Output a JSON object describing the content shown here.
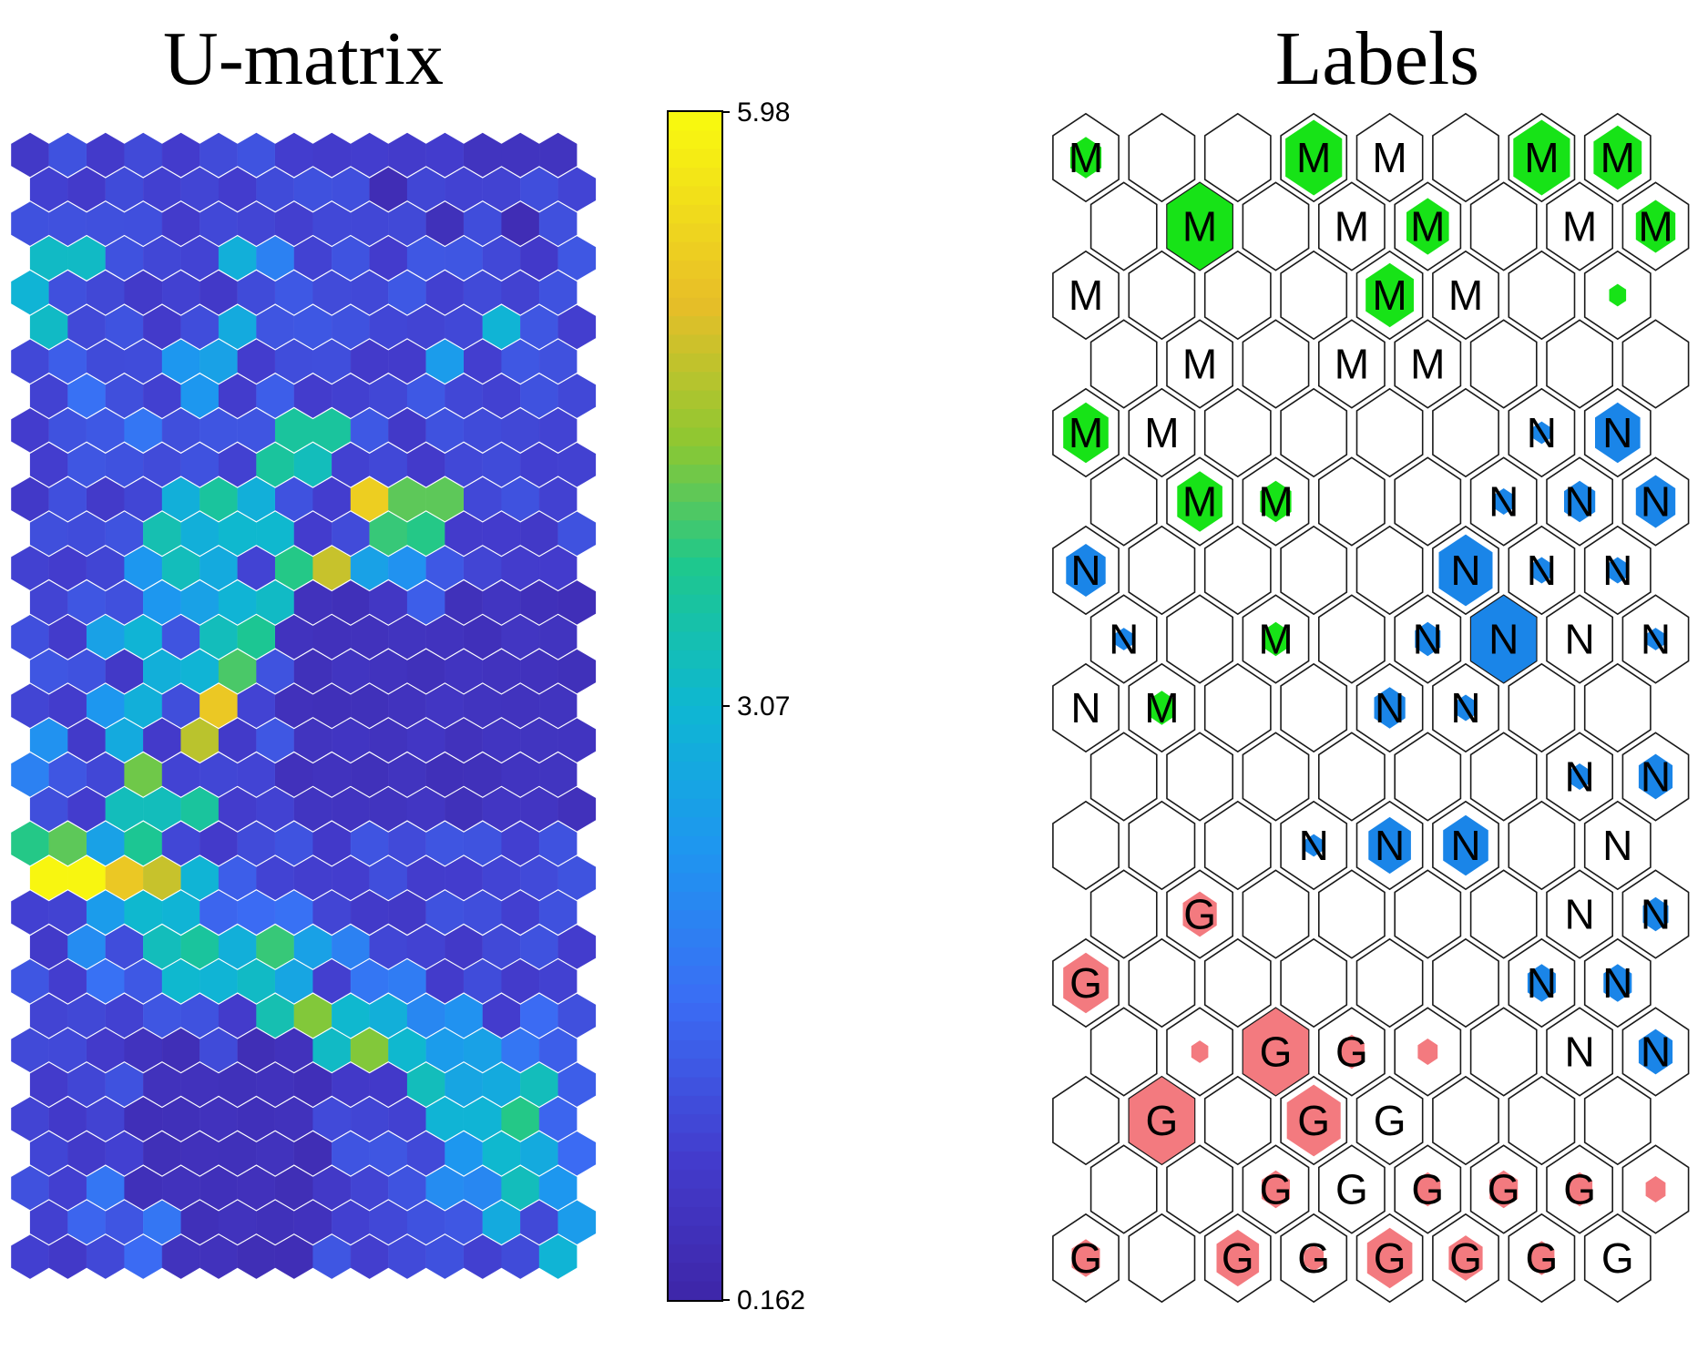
{
  "chart_data": [
    {
      "type": "heatmap",
      "title": "U-matrix",
      "grid": {
        "rows": 33,
        "cols": 15
      },
      "colorbar": {
        "min": 0.162,
        "max": 5.98,
        "ticks": [
          "5.98",
          "3.07",
          "0.162"
        ]
      },
      "upper_boundary": [
        2,
        1,
        1,
        1,
        1,
        1,
        1,
        1,
        1,
        1,
        1,
        1,
        1,
        1,
        2
      ],
      "seeds": [
        [
          3,
          0,
          3.2
        ],
        [
          3,
          1,
          3.2
        ],
        [
          4,
          0,
          3.0
        ],
        [
          5,
          0,
          3.2
        ],
        [
          1,
          2,
          1.1
        ],
        [
          3,
          2,
          1.2
        ],
        [
          5,
          5,
          2.8
        ],
        [
          11,
          6,
          3.1
        ],
        [
          12,
          7,
          3.8
        ],
        [
          12,
          8,
          4.8
        ],
        [
          11,
          9,
          3.9
        ],
        [
          11,
          10,
          3.8
        ],
        [
          10,
          9,
          5.3
        ],
        [
          10,
          10,
          4.1
        ],
        [
          10,
          11,
          4.1
        ],
        [
          12,
          9,
          2.6
        ],
        [
          12,
          10,
          2.3
        ],
        [
          13,
          10,
          1.4
        ],
        [
          12,
          11,
          1.3
        ],
        [
          6,
          11,
          2.5
        ],
        [
          4,
          10,
          1.3
        ],
        [
          5,
          12,
          3.0
        ],
        [
          12,
          4,
          3.3
        ],
        [
          11,
          5,
          3.1
        ],
        [
          10,
          6,
          2.9
        ],
        [
          11,
          4,
          2.9
        ],
        [
          11,
          3,
          3.4
        ],
        [
          10,
          4,
          2.9
        ],
        [
          10,
          5,
          3.6
        ],
        [
          9,
          6,
          3.6
        ],
        [
          9,
          7,
          3.3
        ],
        [
          8,
          8,
          3.6
        ],
        [
          8,
          7,
          3.6
        ],
        [
          12,
          5,
          2.8
        ],
        [
          13,
          5,
          3.0
        ],
        [
          13,
          6,
          3.2
        ],
        [
          14,
          5,
          3.3
        ],
        [
          14,
          6,
          3.7
        ],
        [
          15,
          5,
          4.0
        ],
        [
          16,
          5,
          5.2
        ],
        [
          15,
          4,
          3.0
        ],
        [
          17,
          4,
          4.7
        ],
        [
          18,
          3,
          4.2
        ],
        [
          19,
          4,
          3.6
        ],
        [
          20,
          3,
          3.7
        ],
        [
          21,
          3,
          4.8
        ],
        [
          21,
          2,
          3.0
        ],
        [
          19,
          2,
          3.3
        ],
        [
          19,
          3,
          3.3
        ],
        [
          20,
          1,
          4.1
        ],
        [
          20,
          0,
          3.8
        ],
        [
          21,
          0,
          5.9
        ],
        [
          21,
          1,
          5.9
        ],
        [
          21,
          2,
          5.2
        ],
        [
          22,
          2,
          2.5
        ],
        [
          23,
          3,
          3.3
        ],
        [
          22,
          3,
          3.1
        ],
        [
          22,
          4,
          3.0
        ],
        [
          21,
          4,
          3.0
        ],
        [
          23,
          4,
          3.6
        ],
        [
          24,
          4,
          3.1
        ],
        [
          24,
          5,
          3.0
        ],
        [
          24,
          6,
          3.2
        ],
        [
          23,
          6,
          3.9
        ],
        [
          23,
          5,
          2.9
        ],
        [
          25,
          6,
          3.4
        ],
        [
          25,
          7,
          4.3
        ],
        [
          25,
          8,
          3.1
        ],
        [
          26,
          8,
          3.2
        ],
        [
          26,
          9,
          4.3
        ],
        [
          26,
          10,
          3.1
        ],
        [
          27,
          10,
          3.3
        ],
        [
          28,
          11,
          3.0
        ],
        [
          28,
          12,
          3.0
        ],
        [
          28,
          13,
          3.8
        ],
        [
          27,
          12,
          2.8
        ],
        [
          29,
          12,
          3.1
        ],
        [
          30,
          11,
          2.2
        ],
        [
          30,
          13,
          3.3
        ],
        [
          31,
          12,
          2.8
        ],
        [
          32,
          14,
          3.0
        ],
        [
          31,
          14,
          2.5
        ],
        [
          30,
          14,
          2.4
        ],
        [
          29,
          13,
          2.8
        ],
        [
          27,
          13,
          3.3
        ],
        [
          26,
          12,
          2.6
        ],
        [
          25,
          11,
          2.3
        ],
        [
          21,
          5,
          1.4
        ],
        [
          22,
          5,
          1.5
        ],
        [
          23,
          7,
          2.6
        ],
        [
          24,
          7,
          2.7
        ],
        [
          25,
          9,
          2.9
        ],
        [
          26,
          11,
          2.5
        ],
        [
          27,
          11,
          2.7
        ],
        [
          29,
          11,
          2.4
        ],
        [
          17,
          2,
          2.8
        ],
        [
          16,
          2,
          2.4
        ],
        [
          16,
          3,
          2.9
        ],
        [
          15,
          3,
          2.9
        ],
        [
          14,
          3,
          3.0
        ],
        [
          14,
          2,
          2.6
        ],
        [
          13,
          3,
          2.4
        ],
        [
          13,
          4,
          2.6
        ],
        [
          12,
          3,
          2.4
        ],
        [
          8,
          2,
          1.3
        ],
        [
          7,
          4,
          2.4
        ],
        [
          6,
          5,
          2.6
        ],
        [
          7,
          6,
          1.4
        ],
        [
          8,
          9,
          1.3
        ],
        [
          7,
          10,
          1.3
        ],
        [
          3,
          5,
          2.9
        ],
        [
          3,
          6,
          2.0
        ],
        [
          6,
          4,
          2.4
        ],
        [
          2,
          13,
          0.4
        ],
        [
          1,
          9,
          0.4
        ],
        [
          2,
          11,
          0.5
        ],
        [
          1,
          6,
          1.1
        ],
        [
          23,
          1,
          2.2
        ],
        [
          24,
          2,
          1.7
        ],
        [
          31,
          1,
          1.5
        ],
        [
          30,
          2,
          1.8
        ],
        [
          31,
          3,
          1.8
        ],
        [
          32,
          3,
          1.6
        ],
        [
          17,
          0,
          2.3
        ],
        [
          18,
          0,
          2.0
        ],
        [
          20,
          2,
          2.6
        ],
        [
          6,
          1,
          1.4
        ],
        [
          7,
          1,
          1.7
        ],
        [
          8,
          3,
          1.8
        ],
        [
          9,
          2,
          1.2
        ],
        [
          9,
          4,
          1.2
        ],
        [
          2,
          7,
          0.9
        ],
        [
          4,
          6,
          1.1
        ],
        [
          9,
          12,
          1.1
        ],
        [
          22,
          6,
          1.6
        ],
        [
          22,
          7,
          1.7
        ],
        [
          23,
          8,
          2.0
        ],
        [
          24,
          9,
          1.8
        ],
        [
          24,
          10,
          1.9
        ],
        [
          25,
          10,
          2.1
        ],
        [
          28,
          14,
          1.5
        ],
        [
          29,
          14,
          1.6
        ],
        [
          27,
          14,
          1.4
        ],
        [
          30,
          12,
          2.1
        ],
        [
          26,
          13,
          1.8
        ],
        [
          25,
          13,
          1.6
        ],
        [
          26,
          14,
          1.4
        ],
        [
          10,
          13,
          1.2
        ],
        [
          8,
          12,
          1.1
        ],
        [
          12,
          12,
          1.0
        ],
        [
          24,
          3,
          1.3
        ],
        [
          25,
          4,
          1.2
        ],
        [
          26,
          5,
          1.1
        ]
      ]
    },
    {
      "type": "table",
      "title": "Labels",
      "grid": {
        "rows": 17,
        "cols": 8
      },
      "class_colors": {
        "M": "#17e317",
        "N": "#1a85e8",
        "G": "#f37a7f"
      },
      "rows": [
        [
          [
            "M",
            0.55
          ],
          [
            "",
            0
          ],
          [
            "",
            0
          ],
          [
            "M",
            1
          ],
          [
            "M",
            0
          ],
          [
            "",
            0
          ],
          [
            "M",
            1
          ],
          [
            "M",
            0.85
          ]
        ],
        [
          [
            "",
            0
          ],
          [
            "M",
            1.15
          ],
          [
            "",
            0
          ],
          [
            "M",
            0
          ],
          [
            "M",
            0.75
          ],
          [
            "",
            0
          ],
          [
            "M",
            0
          ],
          [
            "M",
            0.7
          ]
        ],
        [
          [
            "M",
            0
          ],
          [
            "",
            0
          ],
          [
            "",
            0
          ],
          [
            "",
            0
          ],
          [
            "M",
            0.85
          ],
          [
            "M",
            0
          ],
          [
            "",
            0
          ],
          [
            "",
            0.3
          ]
        ],
        [
          [
            "",
            0
          ],
          [
            "M",
            0
          ],
          [
            "",
            0
          ],
          [
            "M",
            0
          ],
          [
            "M",
            0
          ],
          [
            "",
            0
          ],
          [
            "",
            0
          ],
          [
            "",
            0
          ]
        ],
        [
          [
            "M",
            0.8
          ],
          [
            "M",
            0
          ],
          [
            "",
            0
          ],
          [
            "",
            0
          ],
          [
            "",
            0
          ],
          [
            "",
            0
          ],
          [
            "N",
            0.3
          ],
          [
            "N",
            0.8
          ]
        ],
        [
          [
            "",
            0
          ],
          [
            "M",
            0.8
          ],
          [
            "M",
            0.55
          ],
          [
            "",
            0
          ],
          [
            "",
            0
          ],
          [
            "N",
            0.35
          ],
          [
            "N",
            0.55
          ],
          [
            "N",
            0.7
          ]
        ],
        [
          [
            "N",
            0.7
          ],
          [
            "",
            0
          ],
          [
            "",
            0
          ],
          [
            "",
            0
          ],
          [
            "",
            0
          ],
          [
            "N",
            0.95
          ],
          [
            "N",
            0.35
          ],
          [
            "N",
            0.35
          ]
        ],
        [
          [
            "N",
            0.3
          ],
          [
            "",
            0
          ],
          [
            "M",
            0.45
          ],
          [
            "",
            0
          ],
          [
            "N",
            0.45
          ],
          [
            "N",
            1.15
          ],
          [
            "N",
            0
          ],
          [
            "N",
            0.3
          ]
        ],
        [
          [
            "N",
            0
          ],
          [
            "M",
            0.45
          ],
          [
            "",
            0
          ],
          [
            "",
            0
          ],
          [
            "N",
            0.55
          ],
          [
            "N",
            0.35
          ],
          [
            "",
            0
          ],
          [
            "",
            0
          ]
        ],
        [
          [
            "",
            0
          ],
          [
            "",
            0
          ],
          [
            "",
            0
          ],
          [
            "",
            0
          ],
          [
            "",
            0
          ],
          [
            "",
            0
          ],
          [
            "N",
            0.35
          ],
          [
            "N",
            0.6
          ]
        ],
        [
          [
            "",
            0
          ],
          [
            "",
            0
          ],
          [
            "",
            0
          ],
          [
            "N",
            0.3
          ],
          [
            "N",
            0.75
          ],
          [
            "N",
            0.8
          ],
          [
            "",
            0
          ],
          [
            "N",
            0
          ]
        ],
        [
          [
            "",
            0
          ],
          [
            "G",
            0.6
          ],
          [
            "",
            0
          ],
          [
            "",
            0
          ],
          [
            "",
            0
          ],
          [
            "",
            0
          ],
          [
            "N",
            0
          ],
          [
            "N",
            0.45
          ]
        ],
        [
          [
            "G",
            0.8
          ],
          [
            "",
            0
          ],
          [
            "",
            0
          ],
          [
            "",
            0
          ],
          [
            "",
            0
          ],
          [
            "",
            0
          ],
          [
            "N",
            0.5
          ],
          [
            "N",
            0.5
          ]
        ],
        [
          [
            "",
            0
          ],
          [
            "",
            0.3
          ],
          [
            "G",
            1.15
          ],
          [
            "G",
            0.45
          ],
          [
            "",
            0.35
          ],
          [
            "",
            0
          ],
          [
            "N",
            0
          ],
          [
            "N",
            0.6
          ]
        ],
        [
          [
            "",
            0
          ],
          [
            "G",
            1.15
          ],
          [
            "",
            0
          ],
          [
            "G",
            0.95
          ],
          [
            "G",
            0
          ],
          [
            "",
            0
          ],
          [
            "",
            0
          ],
          [
            "",
            0
          ]
        ],
        [
          [
            "",
            0
          ],
          [
            "",
            0
          ],
          [
            "G",
            0.5
          ],
          [
            "G",
            0
          ],
          [
            "G",
            0.45
          ],
          [
            "G",
            0.5
          ],
          [
            "G",
            0.45
          ],
          [
            "",
            0.35
          ]
        ],
        [
          [
            "G",
            0.5
          ],
          [
            "",
            0
          ],
          [
            "G",
            0.75
          ],
          [
            "G",
            0.35
          ],
          [
            "G",
            0.8
          ],
          [
            "G",
            0.6
          ],
          [
            "G",
            0.45
          ],
          [
            "G",
            0
          ]
        ]
      ]
    }
  ]
}
